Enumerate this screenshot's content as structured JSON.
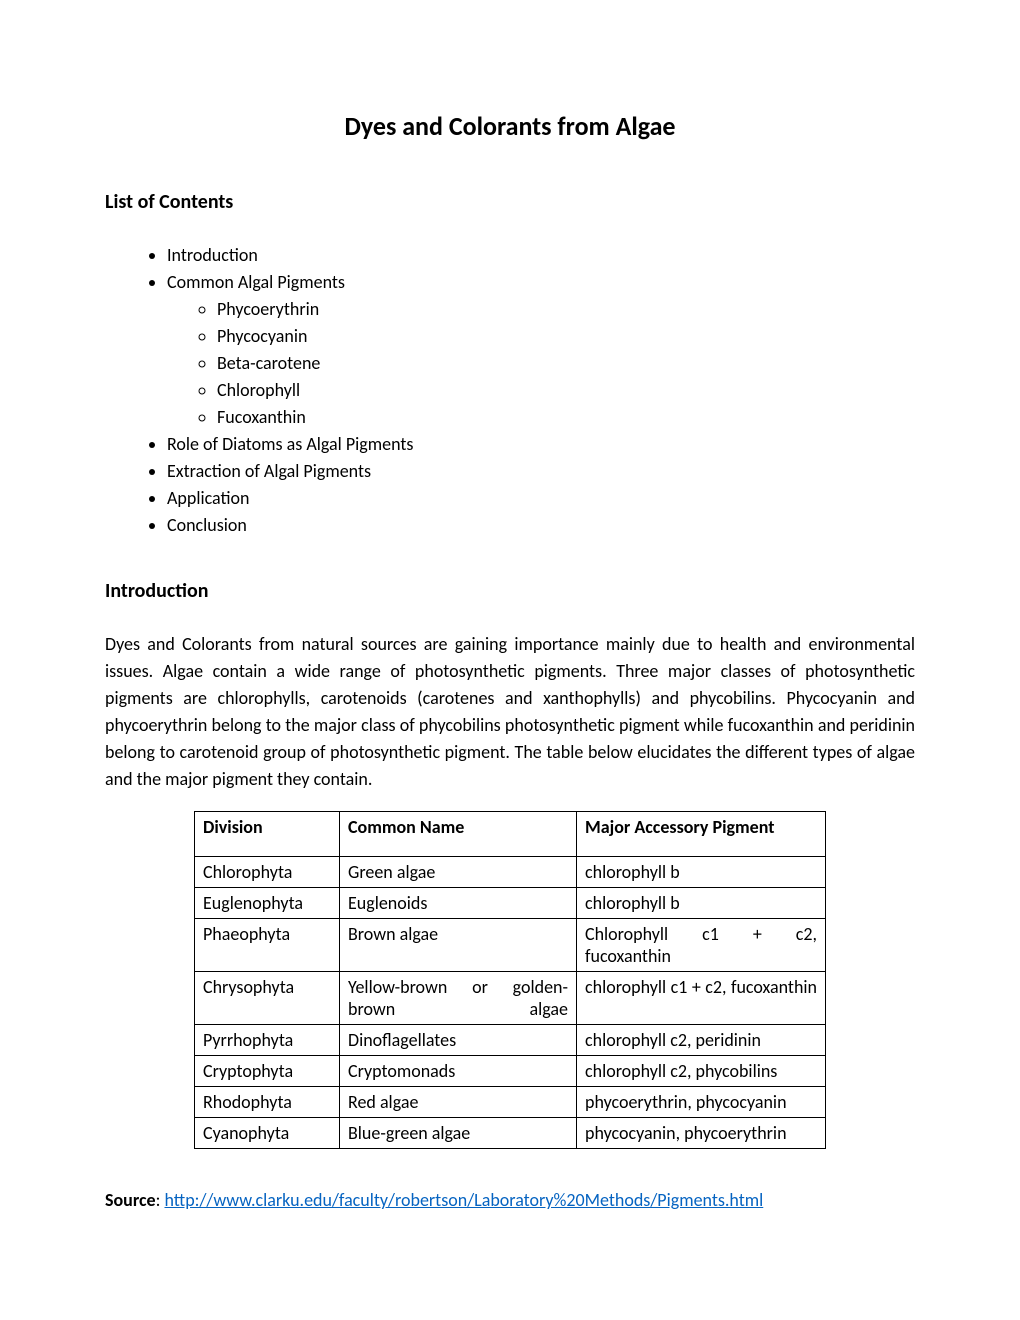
{
  "title": "Dyes and Colorants from Algae",
  "contentsHeading": "List of Contents",
  "contents": {
    "items": [
      "Introduction",
      "Common Algal Pigments",
      "Role of Diatoms as Algal Pigments",
      "Extraction of Algal Pigments",
      "Application",
      "Conclusion"
    ],
    "subItems": [
      "Phycoerythrin",
      "Phycocyanin",
      "Beta-carotene",
      "Chlorophyll",
      "Fucoxanthin"
    ]
  },
  "introHeading": "Introduction",
  "introParagraph": "Dyes and Colorants from natural sources are gaining importance mainly due to health and environmental issues. Algae contain a wide range of photosynthetic pigments. Three major classes of photosynthetic pigments are chlorophylls, carotenoids (carotenes and xanthophylls) and phycobilins. Phycocyanin and phycoerythrin belong to the major class of phycobilins photosynthetic pigment while fucoxanthin and peridinin belong to carotenoid group of photosynthetic pigment. The table below elucidates the different types of algae and the major pigment they contain.",
  "table": {
    "headers": {
      "division": "Division",
      "commonName": "Common Name",
      "pigment": "Major Accessory Pigment"
    },
    "rows": [
      {
        "division": "Chlorophyta",
        "commonName": "Green algae",
        "commonJustify": false,
        "pigment": "chlorophyll b",
        "pigmentJustify": false
      },
      {
        "division": "Euglenophyta",
        "commonName": "Euglenoids",
        "commonJustify": false,
        "pigment": "chlorophyll b",
        "pigmentJustify": false
      },
      {
        "division": "Phaeophyta",
        "commonName": "Brown algae",
        "commonJustify": false,
        "pigment": "Chlorophyll c1 + c2, fucoxanthin",
        "pigmentJustify": true
      },
      {
        "division": "Chrysophyta",
        "commonName": "Yellow-brown or golden-brown algae",
        "commonJustify": true,
        "pigment": "chlorophyll c1 + c2, fucoxanthin",
        "pigmentJustify": true
      },
      {
        "division": "Pyrrhophyta",
        "commonName": "Dinoflagellates",
        "commonJustify": false,
        "pigment": "chlorophyll c2, peridinin",
        "pigmentJustify": false
      },
      {
        "division": "Cryptophyta",
        "commonName": "Cryptomonads",
        "commonJustify": false,
        "pigment": "chlorophyll c2, phycobilins",
        "pigmentJustify": false
      },
      {
        "division": "Rhodophyta",
        "commonName": "Red algae",
        "commonJustify": false,
        "pigment": "phycoerythrin, phycocyanin",
        "pigmentJustify": false
      },
      {
        "division": "Cyanophyta",
        "commonName": "Blue-green algae",
        "commonJustify": false,
        "pigment": "phycocyanin, phycoerythrin",
        "pigmentJustify": false
      }
    ]
  },
  "source": {
    "label": "Source",
    "separator": ": ",
    "url": "http://www.clarku.edu/faculty/robertson/Laboratory%20Methods/Pigments.html"
  },
  "colors": {
    "text": "#000000",
    "background": "#ffffff",
    "link": "#0563c1",
    "border": "#000000"
  }
}
